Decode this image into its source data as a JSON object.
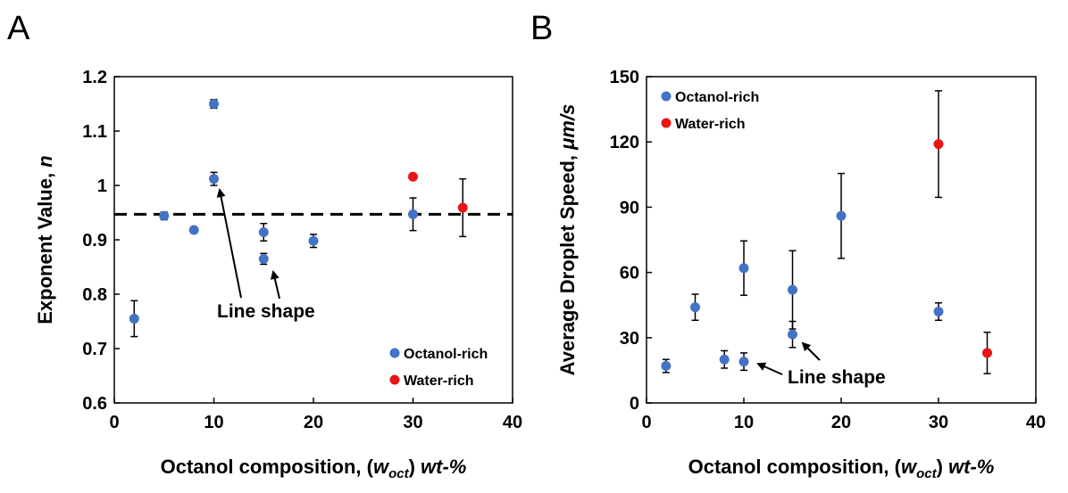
{
  "chart_data": [
    {
      "type": "scatter",
      "panel_label": "A",
      "title": "",
      "xlabel": {
        "main": "Octanol composition, (",
        "var": "w",
        "sub": "oct",
        "close": ") ",
        "unit": "wt-%"
      },
      "ylabel": {
        "main": "Exponent Value, ",
        "unit": "n"
      },
      "xlim": [
        0,
        40
      ],
      "ylim": [
        0.6,
        1.2
      ],
      "xticks": [
        "0",
        "10",
        "20",
        "30",
        "40"
      ],
      "yticks": [
        "0.6",
        "0.7",
        "0.8",
        "0.9",
        "1",
        "1.1",
        "1.2"
      ],
      "reference_line": {
        "y": 0.947,
        "style": "dashed"
      },
      "series": [
        {
          "name": "Octanol-rich",
          "color": "#4472C4",
          "points": [
            {
              "x": 2,
              "y": 0.755,
              "err": 0.033
            },
            {
              "x": 5,
              "y": 0.944,
              "err": 0.007
            },
            {
              "x": 8,
              "y": 0.918,
              "err": 0.004
            },
            {
              "x": 10,
              "y": 1.15,
              "err": 0.008
            },
            {
              "x": 10,
              "y": 1.012,
              "err": 0.012
            },
            {
              "x": 15,
              "y": 0.914,
              "err": 0.016
            },
            {
              "x": 15,
              "y": 0.865,
              "err": 0.01
            },
            {
              "x": 20,
              "y": 0.898,
              "err": 0.012
            },
            {
              "x": 30,
              "y": 0.947,
              "err": 0.03
            }
          ]
        },
        {
          "name": "Water-rich",
          "color": "#E81416",
          "points": [
            {
              "x": 30,
              "y": 1.016,
              "err": 0.005
            },
            {
              "x": 35,
              "y": 0.959,
              "err": 0.053
            }
          ]
        }
      ],
      "legend": {
        "position": "bottom-right",
        "entries": [
          "Octanol-rich",
          "Water-rich"
        ]
      },
      "annotation": {
        "text": "Line shape",
        "targets": [
          {
            "x": 10,
            "y": 1.012
          },
          {
            "x": 15,
            "y": 0.865
          }
        ]
      }
    },
    {
      "type": "scatter",
      "panel_label": "B",
      "title": "",
      "xlabel": {
        "main": "Octanol composition, (",
        "var": "w",
        "sub": "oct",
        "close": ") ",
        "unit": "wt-%"
      },
      "ylabel": {
        "main": "Average Droplet Speed, ",
        "unit": "μm/s"
      },
      "xlim": [
        0,
        40
      ],
      "ylim": [
        0,
        150
      ],
      "xticks": [
        "0",
        "10",
        "20",
        "30",
        "40"
      ],
      "yticks": [
        "0",
        "30",
        "60",
        "90",
        "120",
        "150"
      ],
      "series": [
        {
          "name": "Octanol-rich",
          "color": "#4472C4",
          "points": [
            {
              "x": 2,
              "y": 17,
              "err": 3
            },
            {
              "x": 5,
              "y": 44,
              "err": 6
            },
            {
              "x": 8,
              "y": 20,
              "err": 4
            },
            {
              "x": 10,
              "y": 62,
              "err": 12.5
            },
            {
              "x": 10,
              "y": 19,
              "err": 4
            },
            {
              "x": 15,
              "y": 52,
              "err": 18
            },
            {
              "x": 15,
              "y": 31.5,
              "err": 6
            },
            {
              "x": 20,
              "y": 86,
              "err": 19.5
            },
            {
              "x": 30,
              "y": 42,
              "err": 4
            }
          ]
        },
        {
          "name": "Water-rich",
          "color": "#E81416",
          "points": [
            {
              "x": 30,
              "y": 119,
              "err": 24.5
            },
            {
              "x": 35,
              "y": 23,
              "err": 9.5
            }
          ]
        }
      ],
      "legend": {
        "position": "top-left",
        "entries": [
          "Octanol-rich",
          "Water-rich"
        ]
      },
      "annotation": {
        "text": "Line shape",
        "targets": [
          {
            "x": 10,
            "y": 19
          },
          {
            "x": 15,
            "y": 31.5
          }
        ]
      }
    }
  ]
}
